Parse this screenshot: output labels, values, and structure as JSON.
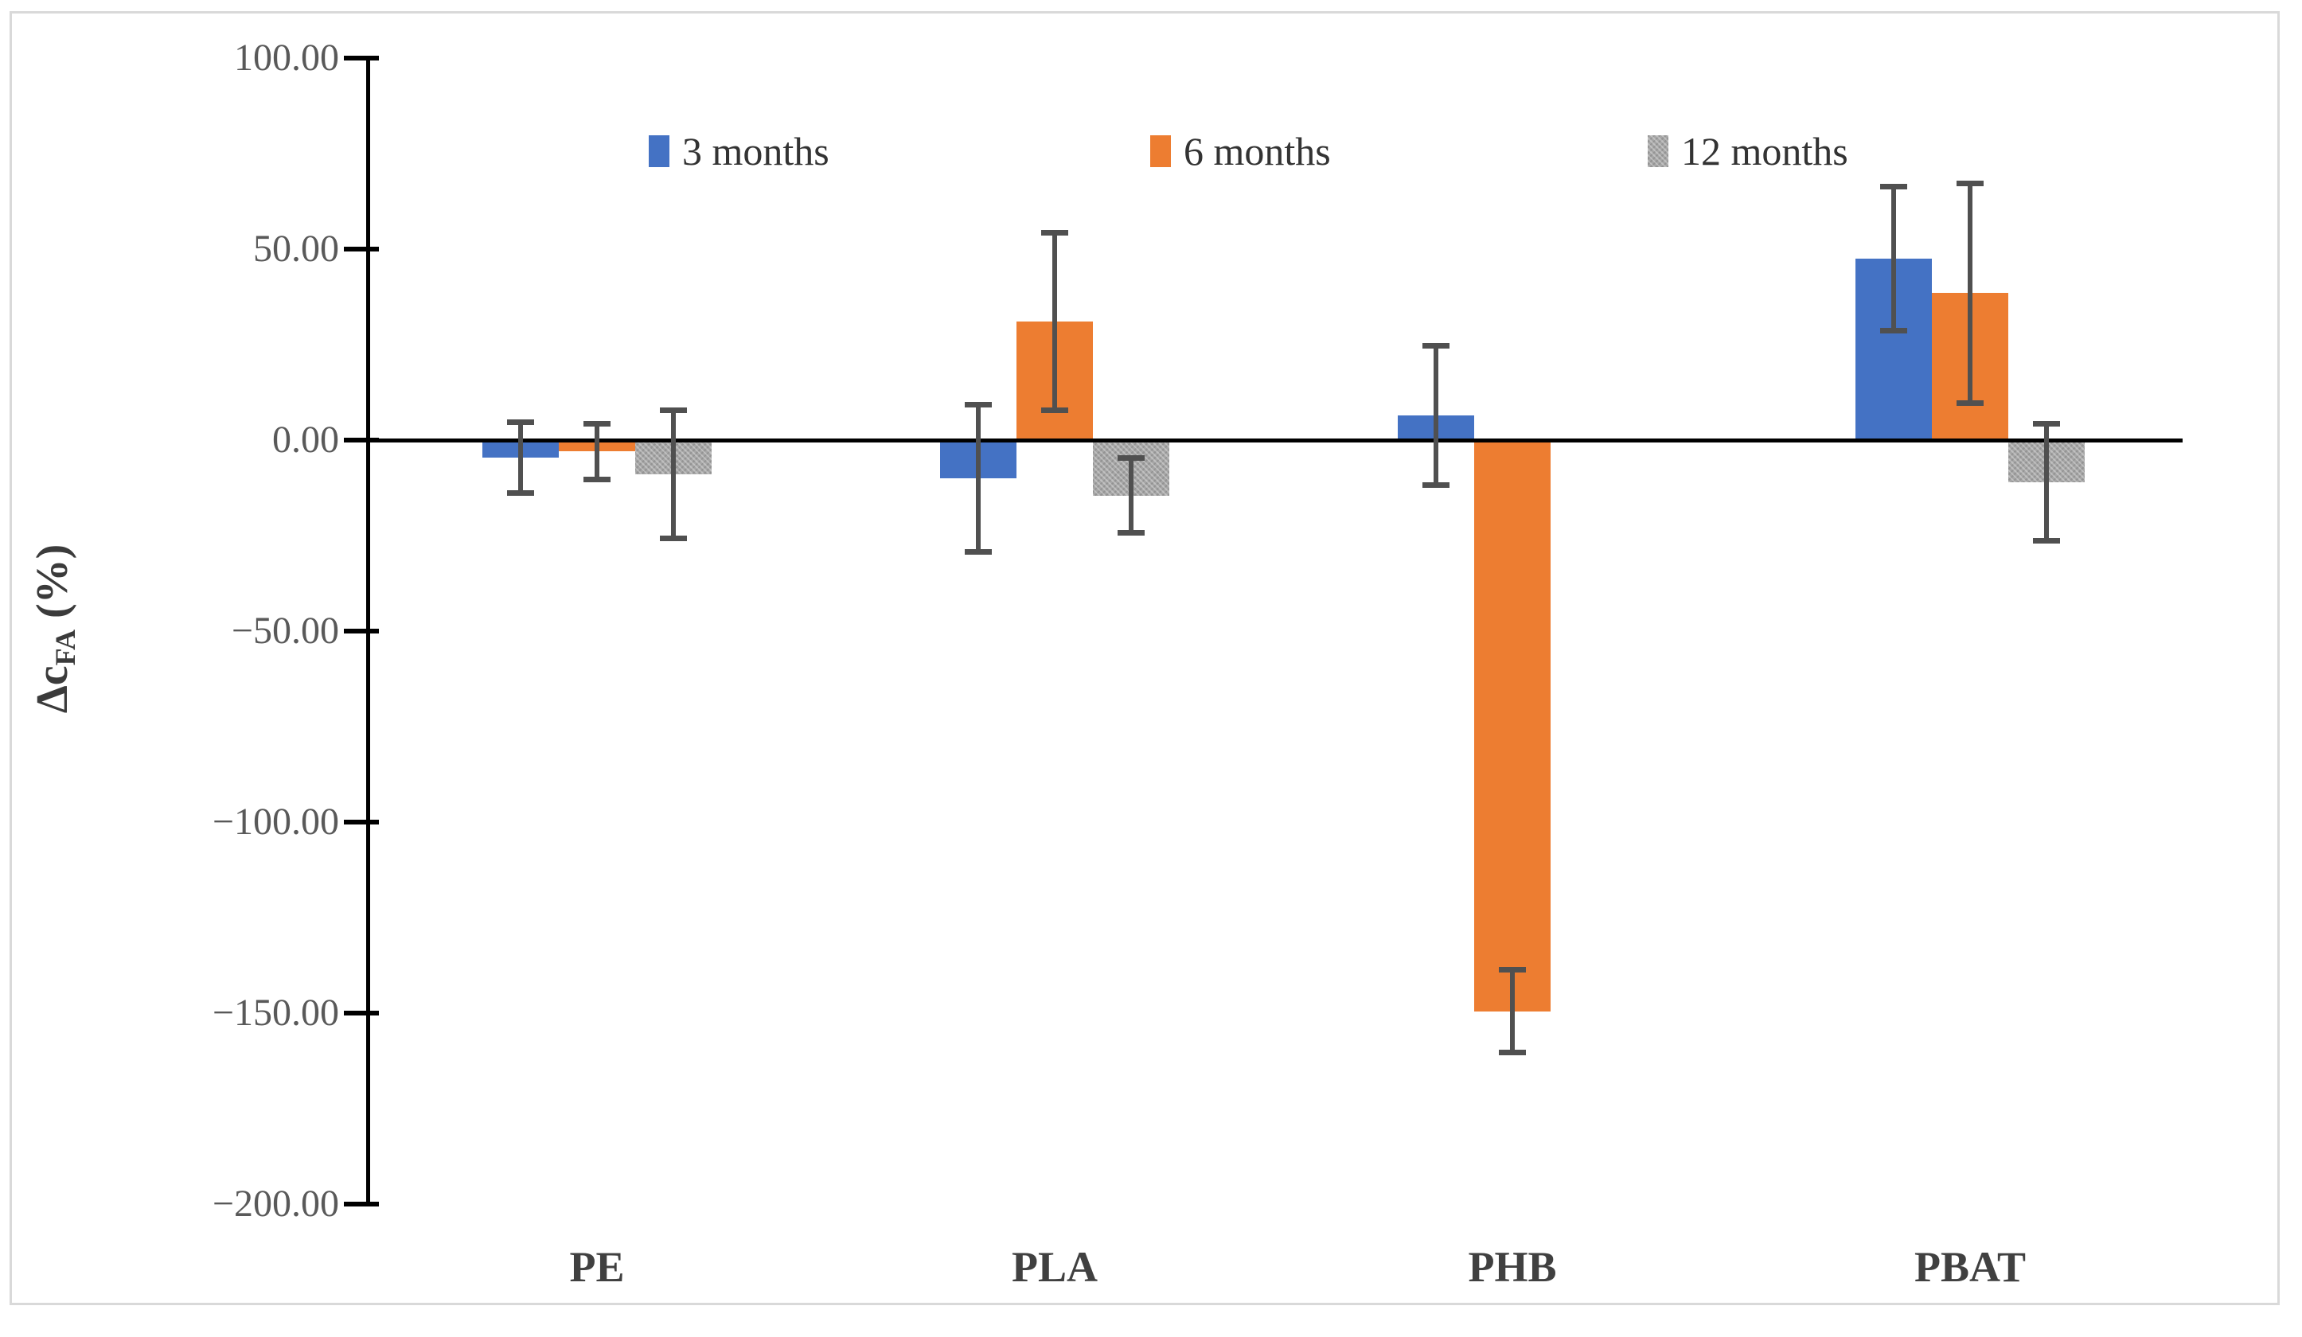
{
  "figure": {
    "background": "#ffffff",
    "border_color": "#d9d9d9"
  },
  "chart_data": {
    "type": "bar",
    "title": "",
    "categories": [
      "PE",
      "PLA",
      "PHB",
      "PBAT"
    ],
    "series": [
      {
        "name": "3 months",
        "color": "#4472C4",
        "pattern": false,
        "values": [
          -4.5,
          -10,
          6.5,
          47.5
        ],
        "errors": [
          10,
          20,
          19,
          19.5
        ]
      },
      {
        "name": "6 months",
        "color": "#ED7D31",
        "pattern": false,
        "values": [
          -3,
          31,
          -149.5,
          38.5
        ],
        "errors": [
          8,
          24,
          11.5,
          29.5
        ]
      },
      {
        "name": "12 months",
        "color": "#A6A6A6",
        "pattern": true,
        "values": [
          -9,
          -14.5,
          null,
          -11
        ],
        "errors": [
          17.5,
          10.5,
          null,
          16
        ]
      }
    ],
    "ylabel": {
      "prefix": "Δc",
      "subscript": "FA",
      "suffix": " (%)"
    },
    "xlabel": "",
    "ylim": [
      -200,
      100
    ],
    "ytick_step": 50,
    "yticks": [
      100,
      50,
      0,
      -50,
      -100,
      -150,
      -200
    ],
    "ytick_labels": [
      "100.00",
      "50.00",
      "0.00",
      "−50.00",
      "−100.00",
      "−150.00",
      "−200.00"
    ],
    "grid": false,
    "legend_position": "top-inside",
    "error_bars": true,
    "colors": {
      "axis": "#000000",
      "error_bar": "#505050",
      "tick_label": "#595959",
      "category_label": "#404040",
      "legend_text": "#333333"
    }
  }
}
